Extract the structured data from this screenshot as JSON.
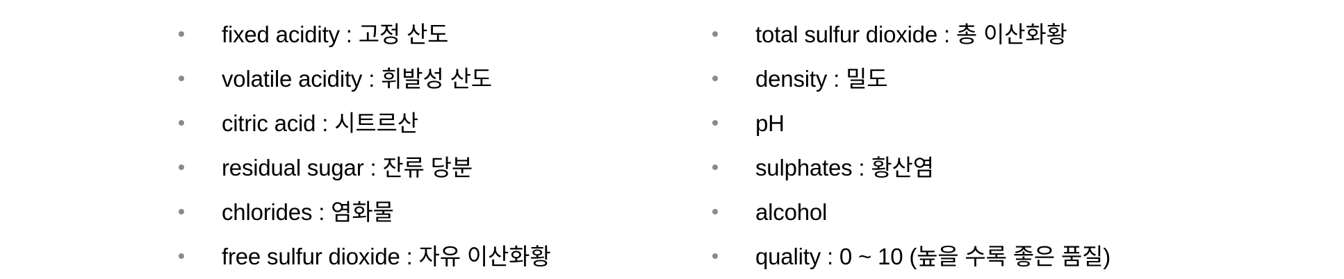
{
  "left_column": {
    "items": [
      {
        "text": "fixed acidity : 고정 산도"
      },
      {
        "text": "volatile acidity : 휘발성 산도"
      },
      {
        "text": "citric acid : 시트르산"
      },
      {
        "text": "residual sugar : 잔류 당분"
      },
      {
        "text": "chlorides : 염화물"
      },
      {
        "text": "free sulfur dioxide : 자유 이산화황"
      }
    ]
  },
  "right_column": {
    "items": [
      {
        "text": "total sulfur dioxide : 총 이산화황"
      },
      {
        "text": "density : 밀도"
      },
      {
        "text": "pH"
      },
      {
        "text": "sulphates : 황산염"
      },
      {
        "text": "alcohol"
      },
      {
        "text": "quality : 0 ~ 10 (높을 수록 좋은 품질)"
      }
    ]
  },
  "bullet_color": "#8a8a8a"
}
